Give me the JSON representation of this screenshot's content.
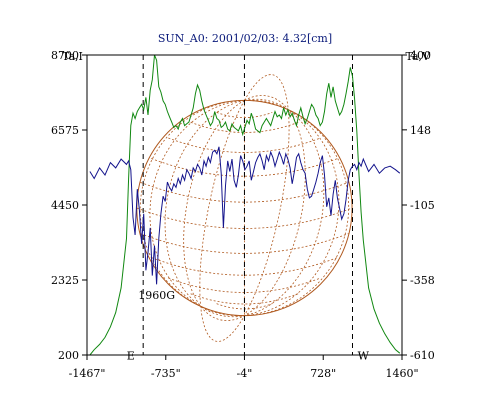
{
  "chart_data": {
    "type": "line",
    "title": "SUN_A0: 2001/02/03: 4.32[cm]",
    "ylabel_left": "Ta,I",
    "ylabel_right": "Ta,V",
    "x_ticks": [
      {
        "value": -1467,
        "label": "-1467\""
      },
      {
        "value": -735,
        "label": "-735\""
      },
      {
        "value": -4,
        "label": "-4\""
      },
      {
        "value": 728,
        "label": "728\""
      },
      {
        "value": 1460,
        "label": "1460\""
      }
    ],
    "xlim": [
      -1467,
      1460
    ],
    "y_left_ticks": [
      {
        "value": 200,
        "label": "200"
      },
      {
        "value": 2325,
        "label": "2325"
      },
      {
        "value": 4450,
        "label": "4450"
      },
      {
        "value": 6575,
        "label": "6575"
      },
      {
        "value": 8700,
        "label": "8700"
      }
    ],
    "ylim_left": [
      200,
      8700
    ],
    "y_right_ticks": [
      {
        "value": -610,
        "label": "-610"
      },
      {
        "value": -358,
        "label": "-358"
      },
      {
        "value": -105,
        "label": "-105"
      },
      {
        "value": 148,
        "label": "148"
      },
      {
        "value": 400,
        "label": "400"
      }
    ],
    "ylim_right": [
      -610,
      400
    ],
    "vertical_markers": [
      -945,
      -4,
      1000
    ],
    "annotations": [
      {
        "text": "E",
        "x": -1060,
        "y": 180
      },
      {
        "text": "W",
        "x": 1100,
        "y": 180
      },
      {
        "text": "1960G",
        "x": -820,
        "y": 1900
      }
    ],
    "solar_disk": {
      "center_x": -4,
      "radius": 1000,
      "grid": true
    },
    "series": [
      {
        "axis": "left",
        "color": "#118811",
        "x": [
          -1440,
          -1400,
          -1350,
          -1300,
          -1250,
          -1200,
          -1150,
          -1100,
          -1080,
          -1060,
          -1040,
          -1020,
          -1000,
          -980,
          -960,
          -940,
          -920,
          -900,
          -880,
          -860,
          -840,
          -820,
          -800,
          -780,
          -760,
          -740,
          -720,
          -700,
          -680,
          -660,
          -640,
          -620,
          -600,
          -580,
          -560,
          -540,
          -520,
          -500,
          -480,
          -460,
          -440,
          -420,
          -400,
          -380,
          -360,
          -340,
          -320,
          -300,
          -280,
          -260,
          -240,
          -220,
          -200,
          -180,
          -160,
          -140,
          -120,
          -100,
          -80,
          -60,
          -40,
          -20,
          0,
          20,
          40,
          60,
          80,
          100,
          120,
          140,
          160,
          180,
          200,
          220,
          240,
          260,
          280,
          300,
          320,
          340,
          360,
          380,
          400,
          420,
          440,
          460,
          480,
          500,
          520,
          540,
          560,
          580,
          600,
          620,
          640,
          660,
          680,
          700,
          720,
          740,
          760,
          780,
          800,
          820,
          840,
          860,
          880,
          900,
          920,
          940,
          960,
          980,
          1000,
          1020,
          1040,
          1060,
          1080,
          1100,
          1150,
          1200,
          1250,
          1300,
          1350,
          1400,
          1440
        ],
        "y": [
          200,
          350,
          500,
          700,
          1000,
          1400,
          2100,
          3500,
          5200,
          6700,
          7050,
          6900,
          7100,
          7200,
          7300,
          7150,
          7500,
          7000,
          7700,
          8000,
          8700,
          8550,
          7800,
          7650,
          7400,
          7300,
          7100,
          6950,
          6800,
          6650,
          6700,
          6600,
          6800,
          6900,
          6700,
          6750,
          6800,
          7000,
          7200,
          7600,
          7850,
          7700,
          7400,
          7150,
          7000,
          6850,
          6700,
          6800,
          7100,
          6900,
          6850,
          6650,
          6700,
          6800,
          6600,
          6550,
          6750,
          6650,
          6600,
          6550,
          6700,
          6450,
          6650,
          6850,
          6750,
          7050,
          6850,
          6600,
          6550,
          6500,
          6700,
          6800,
          6900,
          6800,
          6700,
          6900,
          7100,
          6950,
          7000,
          6900,
          7200,
          7000,
          7150,
          6950,
          7050,
          6850,
          6700,
          7000,
          7200,
          6950,
          6750,
          6900,
          7100,
          7300,
          7200,
          7000,
          6900,
          6700,
          6800,
          7100,
          7600,
          7900,
          7500,
          7800,
          7400,
          7200,
          7000,
          7100,
          7300,
          7600,
          7950,
          8350,
          8100,
          7450,
          6550,
          5300,
          4250,
          3450,
          2100,
          1500,
          1100,
          800,
          550,
          350,
          250
        ]
      },
      {
        "axis": "left",
        "color": "#14148c",
        "x": [
          -1440,
          -1400,
          -1350,
          -1300,
          -1250,
          -1200,
          -1150,
          -1100,
          -1080,
          -1060,
          -1040,
          -1020,
          -1000,
          -980,
          -960,
          -940,
          -920,
          -900,
          -880,
          -860,
          -840,
          -820,
          -800,
          -780,
          -760,
          -740,
          -720,
          -700,
          -680,
          -660,
          -640,
          -620,
          -600,
          -580,
          -560,
          -540,
          -520,
          -500,
          -480,
          -460,
          -440,
          -420,
          -400,
          -380,
          -360,
          -340,
          -320,
          -300,
          -280,
          -260,
          -240,
          -220,
          -200,
          -180,
          -160,
          -140,
          -120,
          -100,
          -80,
          -60,
          -40,
          -20,
          0,
          20,
          40,
          60,
          80,
          100,
          120,
          140,
          160,
          180,
          200,
          220,
          240,
          260,
          280,
          300,
          320,
          340,
          360,
          380,
          400,
          420,
          440,
          460,
          480,
          500,
          520,
          540,
          560,
          580,
          600,
          620,
          640,
          660,
          680,
          700,
          720,
          740,
          760,
          780,
          800,
          820,
          840,
          860,
          880,
          900,
          920,
          940,
          960,
          980,
          1000,
          1020,
          1040,
          1060,
          1080,
          1100,
          1150,
          1200,
          1250,
          1300,
          1350,
          1400,
          1440
        ],
        "y": [
          5400,
          5200,
          5500,
          5300,
          5650,
          5500,
          5750,
          5600,
          5700,
          5450,
          4100,
          3600,
          4900,
          4300,
          3350,
          4200,
          2600,
          3100,
          3800,
          2450,
          3300,
          2200,
          3500,
          4200,
          4700,
          4550,
          5100,
          4950,
          4850,
          5050,
          4950,
          5200,
          5050,
          5300,
          5150,
          5450,
          5350,
          5200,
          5500,
          5400,
          5600,
          5500,
          5300,
          5700,
          5550,
          5800,
          5650,
          5950,
          6000,
          5900,
          6100,
          5350,
          3800,
          5000,
          5700,
          5400,
          5750,
          5150,
          4950,
          5300,
          5850,
          5700,
          5450,
          5550,
          5700,
          5150,
          5400,
          5650,
          5800,
          5900,
          5700,
          5450,
          5850,
          5700,
          5950,
          5800,
          5550,
          5750,
          5950,
          5800,
          5600,
          5900,
          5750,
          5500,
          5050,
          5400,
          5800,
          5900,
          5650,
          5450,
          5350,
          4900,
          4650,
          4700,
          4900,
          5100,
          5350,
          5650,
          5850,
          5300,
          4400,
          4650,
          4150,
          4750,
          5150,
          4650,
          4350,
          4050,
          4200,
          4600,
          5150,
          5450,
          5550,
          5600,
          5450,
          5650,
          5550,
          5750,
          5400,
          5600,
          5350,
          5500,
          5550,
          5450,
          5350
        ]
      }
    ]
  }
}
